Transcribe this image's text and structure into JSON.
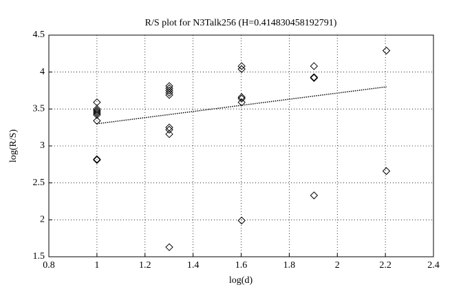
{
  "chart_data": {
    "type": "scatter",
    "title": "R/S plot for N3Talk256 (H=0.414830458192791)",
    "x_label": "log(d)",
    "y_label": "log(R/S)",
    "xlim": [
      0.8,
      2.4
    ],
    "xticks": [
      0.8,
      1,
      1.2,
      1.4,
      1.6,
      1.8,
      2,
      2.2,
      2.4
    ],
    "ylim": [
      1.5,
      4.5
    ],
    "yticks": [
      1.5,
      2,
      2.5,
      3,
      3.5,
      4,
      4.5
    ],
    "grid": true,
    "series": [
      {
        "color": "#000000",
        "marker": "diamond",
        "x": [
          1,
          1,
          1,
          1,
          1,
          1,
          1,
          1,
          1,
          1.301,
          1.301,
          1.301,
          1.301,
          1.301,
          1.301,
          1.301,
          1.301,
          1.301,
          1.602,
          1.602,
          1.602,
          1.602,
          1.602,
          1.602,
          1.903,
          1.903,
          1.903,
          1.903,
          2.204,
          2.204
        ],
        "values": [
          3.59,
          3.5,
          3.48,
          3.46,
          3.44,
          3.42,
          3.34,
          2.82,
          2.81,
          3.81,
          3.78,
          3.75,
          3.72,
          3.69,
          3.25,
          3.22,
          3.16,
          1.63,
          4.08,
          4.04,
          3.66,
          3.64,
          3.59,
          1.99,
          4.08,
          3.93,
          3.92,
          2.33,
          4.29,
          2.66
        ]
      },
      {
        "color": "#000000",
        "style": "dotted",
        "x": [
          1,
          2.204
        ],
        "values": [
          3.3,
          3.8
        ]
      }
    ]
  }
}
